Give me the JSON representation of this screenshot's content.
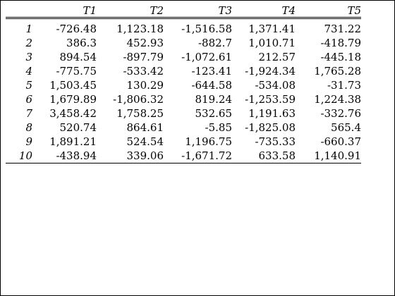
{
  "table": {
    "headers": [
      "",
      "T1",
      "T2",
      "T3",
      "T4",
      "T5"
    ],
    "rows": [
      {
        "index": "1",
        "cells": [
          "-726.48",
          "1,123.18",
          "-1,516.58",
          "1,371.41",
          "731.22"
        ]
      },
      {
        "index": "2",
        "cells": [
          "386.3",
          "452.93",
          "-882.7",
          "1,010.71",
          "-418.79"
        ]
      },
      {
        "index": "3",
        "cells": [
          "894.54",
          "-897.79",
          "-1,072.61",
          "212.57",
          "-445.18"
        ]
      },
      {
        "index": "4",
        "cells": [
          "-775.75",
          "-533.42",
          "-123.41",
          "-1,924.34",
          "1,765.28"
        ]
      },
      {
        "index": "5",
        "cells": [
          "1,503.45",
          "130.29",
          "-644.58",
          "-534.08",
          "-31.73"
        ]
      },
      {
        "index": "6",
        "cells": [
          "1,679.89",
          "-1,806.32",
          "819.24",
          "-1,253.59",
          "1,224.38"
        ]
      },
      {
        "index": "7",
        "cells": [
          "3,458.42",
          "1,758.25",
          "532.65",
          "1,191.63",
          "-332.76"
        ]
      },
      {
        "index": "8",
        "cells": [
          "520.74",
          "864.61",
          "-5.85",
          "-1,825.08",
          "565.4"
        ]
      },
      {
        "index": "9",
        "cells": [
          "1,891.21",
          "524.54",
          "1,196.75",
          "-735.33",
          "-660.37"
        ]
      },
      {
        "index": "10",
        "cells": [
          "-438.94",
          "339.06",
          "-1,671.72",
          "633.58",
          "1,140.91"
        ]
      }
    ]
  }
}
